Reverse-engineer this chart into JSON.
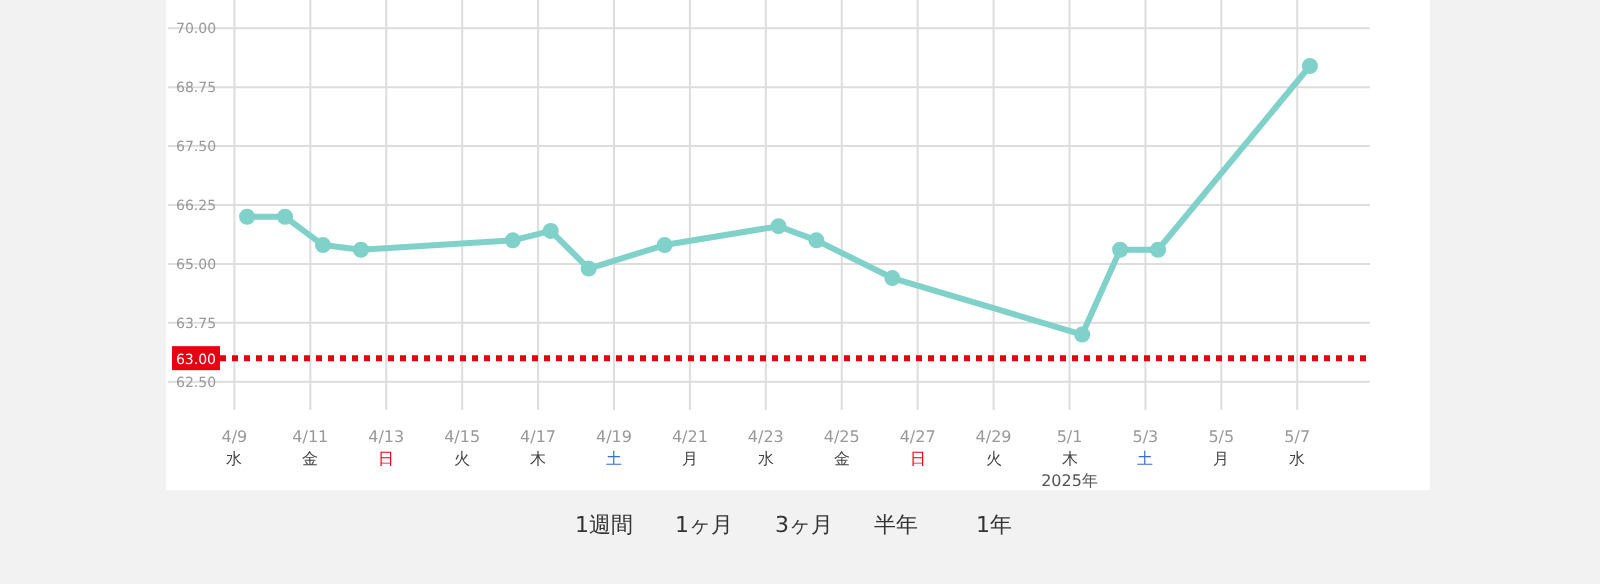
{
  "chart_data": {
    "type": "line",
    "x": [
      "2025-04-09T08:00",
      "2025-04-10T08:00",
      "2025-04-11T08:00",
      "2025-04-12T08:00",
      "2025-04-16T08:00",
      "2025-04-17T08:00",
      "2025-04-18T08:00",
      "2025-04-20T08:00",
      "2025-04-23T08:00",
      "2025-04-24T08:00",
      "2025-04-26T08:00",
      "2025-05-01T08:00",
      "2025-05-02T08:00",
      "2025-05-03T08:00",
      "2025-05-07T08:00"
    ],
    "series": [
      {
        "color": "#7fd1c9",
        "values": [
          66.0,
          66.0,
          65.4,
          65.3,
          65.5,
          65.7,
          64.9,
          65.4,
          65.8,
          65.5,
          64.7,
          63.5,
          65.3,
          65.3,
          69.2
        ]
      }
    ],
    "marker": "circle",
    "xlim": [
      "2025-04-07T06:00",
      "2025-05-08T22:00"
    ],
    "ylim": [
      61.9,
      70.6
    ],
    "yticks": [
      {
        "value": 62.5,
        "label": "62.50"
      },
      {
        "value": 63.75,
        "label": "63.75"
      },
      {
        "value": 65.0,
        "label": "65.00"
      },
      {
        "value": 66.25,
        "label": "66.25"
      },
      {
        "value": 67.5,
        "label": "67.50"
      },
      {
        "value": 68.75,
        "label": "68.75"
      },
      {
        "value": 70.0,
        "label": "70.00"
      }
    ],
    "xticks": [
      {
        "value": "2025-04-09",
        "label": "4/9 水"
      },
      {
        "value": "2025-04-11",
        "label": "4/11 金"
      },
      {
        "value": "2025-04-13",
        "label": "4/13 日"
      },
      {
        "value": "2025-04-15",
        "label": "4/15 火"
      },
      {
        "value": "2025-04-17",
        "label": "4/17 木"
      },
      {
        "value": "2025-04-19",
        "label": "4/19 土"
      },
      {
        "value": "2025-04-21",
        "label": "4/21 月"
      },
      {
        "value": "2025-04-23",
        "label": "4/23 水"
      },
      {
        "value": "2025-04-25",
        "label": "4/25 金"
      },
      {
        "value": "2025-04-27",
        "label": "4/27 日"
      },
      {
        "value": "2025-04-29",
        "label": "4/29 火"
      },
      {
        "value": "2025-05-01",
        "label": "5/1 木 2025年"
      },
      {
        "value": "2025-05-03",
        "label": "5/3 土"
      },
      {
        "value": "2025-05-05",
        "label": "5/5 月"
      },
      {
        "value": "2025-05-07",
        "label": "5/7 水"
      }
    ],
    "grid": true,
    "ref_lines": [
      {
        "axis": "y",
        "value": 63.0,
        "label": "63.00",
        "color": "#e60012",
        "line_style": "dotted"
      }
    ],
    "annotations": [
      "1週間",
      "1ヶ月",
      "3ヶ月",
      "半年",
      "1年"
    ]
  }
}
